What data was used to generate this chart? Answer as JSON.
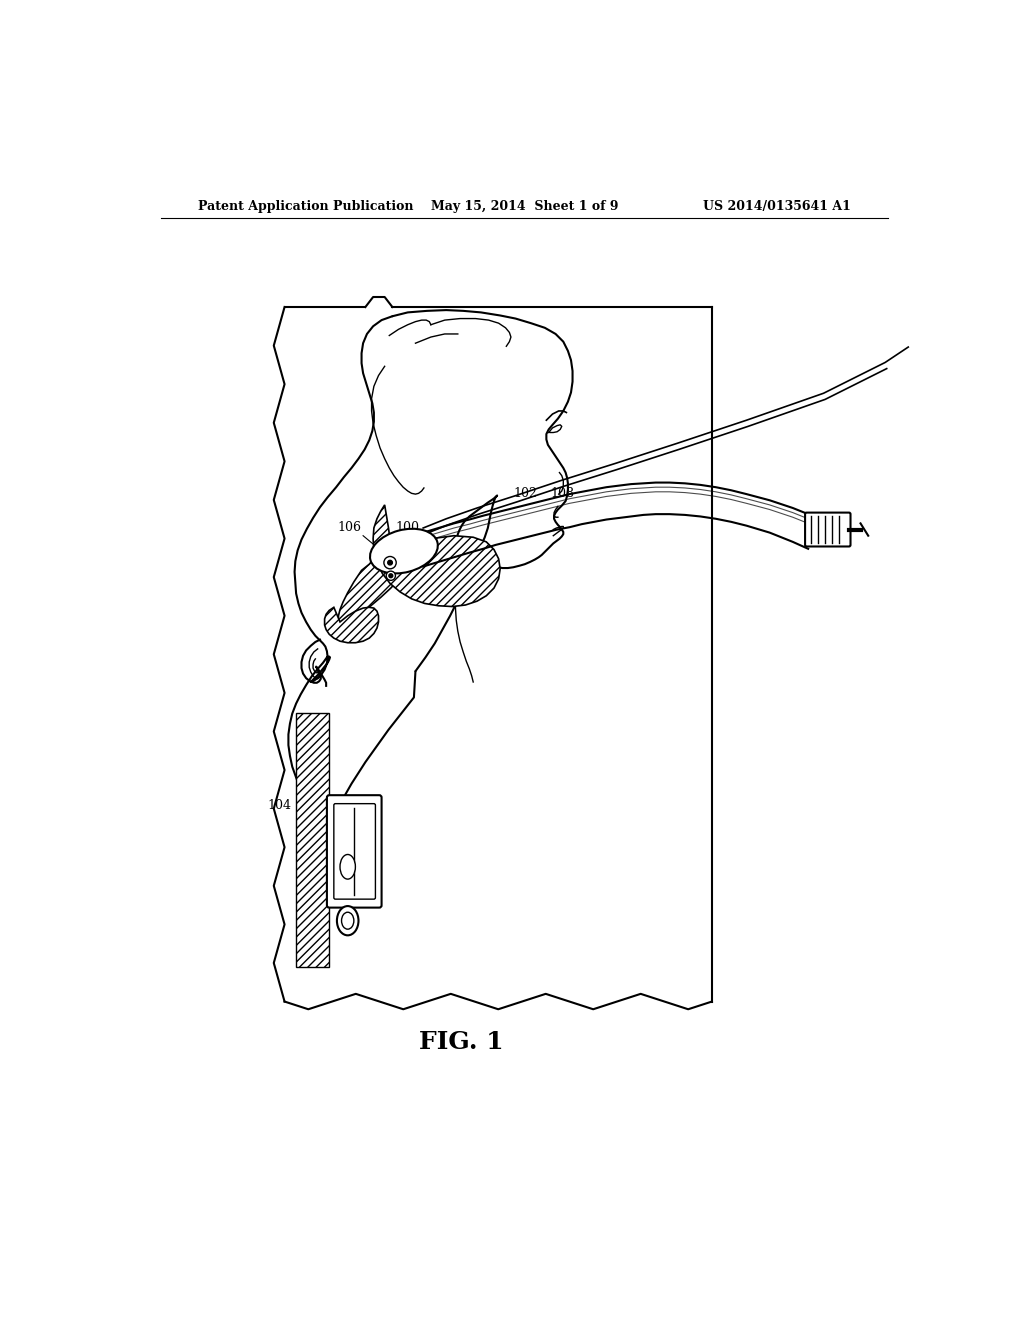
{
  "header_left": "Patent Application Publication",
  "header_center": "May 15, 2014  Sheet 1 of 9",
  "header_right": "US 2014/0135641 A1",
  "fig_label": "FIG. 1",
  "bg_color": "#ffffff",
  "line_color": "#000000"
}
